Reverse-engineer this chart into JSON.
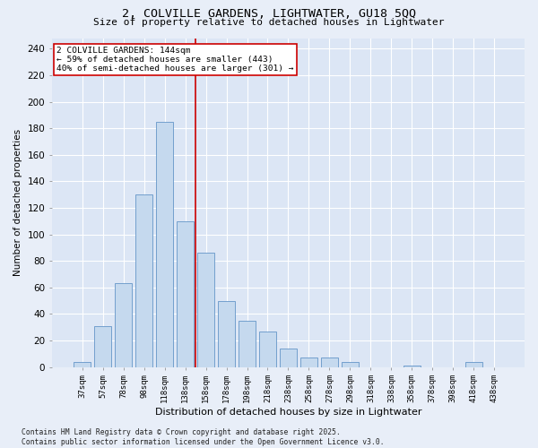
{
  "title_line1": "2, COLVILLE GARDENS, LIGHTWATER, GU18 5QQ",
  "title_line2": "Size of property relative to detached houses in Lightwater",
  "xlabel": "Distribution of detached houses by size in Lightwater",
  "ylabel": "Number of detached properties",
  "bar_labels": [
    "37sqm",
    "57sqm",
    "78sqm",
    "98sqm",
    "118sqm",
    "138sqm",
    "158sqm",
    "178sqm",
    "198sqm",
    "218sqm",
    "238sqm",
    "258sqm",
    "278sqm",
    "298sqm",
    "318sqm",
    "338sqm",
    "358sqm",
    "378sqm",
    "398sqm",
    "418sqm",
    "438sqm"
  ],
  "bar_values": [
    4,
    31,
    63,
    130,
    185,
    110,
    86,
    50,
    35,
    27,
    14,
    7,
    7,
    4,
    0,
    0,
    1,
    0,
    0,
    4,
    0
  ],
  "bar_color": "#c5d9ee",
  "bar_edge_color": "#6496c8",
  "vline_x_index": 5,
  "vline_color": "#cc0000",
  "annotation_text": "2 COLVILLE GARDENS: 144sqm\n← 59% of detached houses are smaller (443)\n40% of semi-detached houses are larger (301) →",
  "annotation_box_color": "#ffffff",
  "annotation_box_edge": "#cc0000",
  "yticks": [
    0,
    20,
    40,
    60,
    80,
    100,
    120,
    140,
    160,
    180,
    200,
    220,
    240
  ],
  "ylim": [
    0,
    248
  ],
  "background_color": "#dce6f5",
  "fig_color": "#e8eef8",
  "footer_text": "Contains HM Land Registry data © Crown copyright and database right 2025.\nContains public sector information licensed under the Open Government Licence v3.0."
}
